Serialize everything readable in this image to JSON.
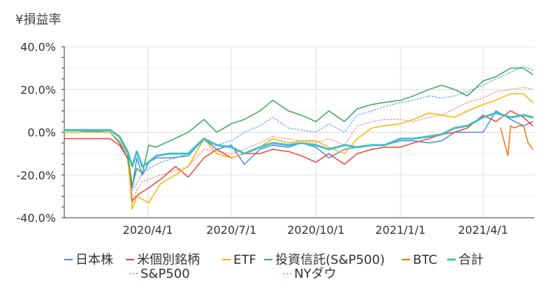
{
  "chart_data": {
    "type": "line",
    "title": "¥損益率",
    "ylim": [
      -0.4,
      0.4
    ],
    "xlim": [
      "2020-01-01",
      "2021-05-27"
    ],
    "grid": true,
    "yticks": [
      {
        "value": 0.4,
        "label": "40.0%"
      },
      {
        "value": 0.2,
        "label": "20.0%"
      },
      {
        "value": 0.0,
        "label": "0.0%"
      },
      {
        "value": -0.2,
        "label": "-20.0%"
      },
      {
        "value": -0.4,
        "label": "-40.0%"
      }
    ],
    "xticks": [
      {
        "value": "2020-04-01",
        "label": "2020/4/1"
      },
      {
        "value": "2020-07-01",
        "label": "2020/7/1"
      },
      {
        "value": "2020-10-01",
        "label": "2020/10/1"
      },
      {
        "value": "2021-01-01",
        "label": "2021/1/1"
      },
      {
        "value": "2021-04-01",
        "label": "2021/4/1"
      }
    ],
    "legend_position": "bottom",
    "series": [
      {
        "name": "日本株",
        "color": "#4a86e8",
        "style": "solid",
        "x": [
          "2020-01-01",
          "2020-02-20",
          "2020-03-01",
          "2020-03-10",
          "2020-03-15",
          "2020-03-20",
          "2020-03-26",
          "2020-04-02",
          "2020-04-10",
          "2020-04-25",
          "2020-05-15",
          "2020-06-01",
          "2020-06-15",
          "2020-07-01",
          "2020-07-15",
          "2020-08-01",
          "2020-08-15",
          "2020-09-01",
          "2020-09-15",
          "2020-10-01",
          "2020-10-15",
          "2020-11-01",
          "2020-11-15",
          "2020-12-01",
          "2020-12-15",
          "2021-01-01",
          "2021-01-15",
          "2021-02-01",
          "2021-02-15",
          "2021-03-01",
          "2021-03-15",
          "2021-04-01",
          "2021-04-15",
          "2021-05-01",
          "2021-05-15",
          "2021-05-25"
        ],
        "y": [
          0.01,
          0.0,
          -0.05,
          -0.12,
          -0.26,
          -0.12,
          -0.2,
          -0.14,
          -0.12,
          -0.12,
          -0.11,
          -0.03,
          -0.08,
          -0.06,
          -0.15,
          -0.08,
          -0.06,
          -0.07,
          -0.05,
          -0.07,
          -0.12,
          -0.08,
          -0.07,
          -0.06,
          -0.06,
          -0.04,
          -0.04,
          -0.05,
          -0.04,
          0.0,
          0.0,
          0.0,
          0.1,
          0.06,
          0.03,
          0.05
        ]
      },
      {
        "name": "米個別銘柄",
        "color": "#ea4335",
        "style": "solid",
        "x": [
          "2020-01-01",
          "2020-02-20",
          "2020-03-01",
          "2020-03-10",
          "2020-03-15",
          "2020-03-22",
          "2020-04-02",
          "2020-04-15",
          "2020-05-01",
          "2020-05-15",
          "2020-06-01",
          "2020-06-15",
          "2020-07-01",
          "2020-07-15",
          "2020-08-01",
          "2020-08-15",
          "2020-09-01",
          "2020-09-15",
          "2020-10-01",
          "2020-10-15",
          "2020-11-01",
          "2020-11-15",
          "2020-12-01",
          "2020-12-15",
          "2021-01-01",
          "2021-01-15",
          "2021-02-01",
          "2021-02-15",
          "2021-03-01",
          "2021-03-15",
          "2021-04-01",
          "2021-04-15",
          "2021-05-01",
          "2021-05-15",
          "2021-05-25"
        ],
        "y": [
          -0.03,
          -0.03,
          -0.06,
          -0.12,
          -0.32,
          -0.29,
          -0.26,
          -0.22,
          -0.16,
          -0.21,
          -0.12,
          -0.08,
          -0.12,
          -0.1,
          -0.1,
          -0.08,
          -0.09,
          -0.11,
          -0.14,
          -0.1,
          -0.15,
          -0.1,
          -0.08,
          -0.07,
          -0.07,
          -0.05,
          -0.03,
          -0.01,
          0.0,
          0.02,
          0.08,
          0.05,
          0.1,
          0.07,
          0.03
        ]
      },
      {
        "name": "ETF",
        "color": "#f4b400",
        "style": "solid",
        "x": [
          "2020-01-01",
          "2020-02-20",
          "2020-03-01",
          "2020-03-10",
          "2020-03-15",
          "2020-03-20",
          "2020-04-02",
          "2020-04-15",
          "2020-05-01",
          "2020-05-15",
          "2020-06-01",
          "2020-06-15",
          "2020-07-01",
          "2020-07-15",
          "2020-08-01",
          "2020-08-15",
          "2020-09-01",
          "2020-09-15",
          "2020-10-01",
          "2020-10-15",
          "2020-11-01",
          "2020-11-15",
          "2020-12-01",
          "2020-12-15",
          "2021-01-01",
          "2021-01-15",
          "2021-02-01",
          "2021-02-15",
          "2021-03-01",
          "2021-03-15",
          "2021-04-01",
          "2021-04-15",
          "2021-05-01",
          "2021-05-15",
          "2021-05-25"
        ],
        "y": [
          0.0,
          0.0,
          -0.04,
          -0.1,
          -0.36,
          -0.3,
          -0.33,
          -0.24,
          -0.2,
          -0.16,
          -0.03,
          -0.1,
          -0.12,
          -0.1,
          -0.07,
          -0.03,
          -0.05,
          -0.04,
          -0.04,
          -0.07,
          -0.1,
          -0.03,
          0.02,
          0.03,
          0.04,
          0.06,
          0.09,
          0.08,
          0.07,
          0.1,
          0.13,
          0.15,
          0.18,
          0.18,
          0.14
        ]
      },
      {
        "name": "投資信託(S&P500)",
        "color": "#34a853",
        "style": "solid",
        "x": [
          "2020-01-01",
          "2020-02-20",
          "2020-03-01",
          "2020-03-10",
          "2020-03-15",
          "2020-03-20",
          "2020-03-26",
          "2020-04-02",
          "2020-04-10",
          "2020-04-25",
          "2020-05-15",
          "2020-06-01",
          "2020-06-15",
          "2020-07-01",
          "2020-07-15",
          "2020-08-01",
          "2020-08-15",
          "2020-09-01",
          "2020-09-15",
          "2020-10-01",
          "2020-10-15",
          "2020-11-01",
          "2020-11-15",
          "2020-12-01",
          "2020-12-15",
          "2021-01-01",
          "2021-01-15",
          "2021-02-01",
          "2021-02-15",
          "2021-03-01",
          "2021-03-15",
          "2021-04-01",
          "2021-04-15",
          "2021-05-01",
          "2021-05-15",
          "2021-05-25"
        ],
        "y": [
          0.01,
          0.01,
          -0.02,
          -0.1,
          -0.25,
          -0.17,
          -0.19,
          -0.06,
          -0.07,
          -0.04,
          0.0,
          0.06,
          0.0,
          0.04,
          0.06,
          0.1,
          0.15,
          0.1,
          0.08,
          0.05,
          0.1,
          0.05,
          0.11,
          0.13,
          0.14,
          0.15,
          0.17,
          0.2,
          0.22,
          0.2,
          0.17,
          0.24,
          0.26,
          0.3,
          0.3,
          0.27
        ]
      },
      {
        "name": "BTC",
        "color": "#ff6d01",
        "style": "solid",
        "x": [
          "2021-04-20",
          "2021-04-28",
          "2021-05-01",
          "2021-05-05",
          "2021-05-10",
          "2021-05-15",
          "2021-05-20",
          "2021-05-25"
        ],
        "y": [
          0.02,
          -0.11,
          0.03,
          0.02,
          0.03,
          0.03,
          -0.05,
          -0.08
        ]
      },
      {
        "name": "合計",
        "color": "#46bdc6",
        "style": "thick",
        "x": [
          "2020-01-01",
          "2020-02-20",
          "2020-03-01",
          "2020-03-10",
          "2020-03-15",
          "2020-03-20",
          "2020-03-26",
          "2020-04-02",
          "2020-04-10",
          "2020-04-25",
          "2020-05-15",
          "2020-06-01",
          "2020-06-15",
          "2020-07-01",
          "2020-07-15",
          "2020-08-01",
          "2020-08-15",
          "2020-09-01",
          "2020-09-15",
          "2020-10-01",
          "2020-10-15",
          "2020-11-01",
          "2020-11-15",
          "2020-12-01",
          "2020-12-15",
          "2021-01-01",
          "2021-01-15",
          "2021-02-01",
          "2021-02-15",
          "2021-03-01",
          "2021-03-15",
          "2021-04-01",
          "2021-04-15",
          "2021-05-01",
          "2021-05-15",
          "2021-05-25"
        ],
        "y": [
          0.01,
          0.01,
          -0.02,
          -0.09,
          -0.16,
          -0.09,
          -0.16,
          -0.14,
          -0.11,
          -0.1,
          -0.1,
          -0.03,
          -0.06,
          -0.07,
          -0.1,
          -0.07,
          -0.05,
          -0.06,
          -0.05,
          -0.06,
          -0.08,
          -0.06,
          -0.07,
          -0.06,
          -0.06,
          -0.03,
          -0.03,
          -0.02,
          -0.01,
          0.02,
          0.03,
          0.07,
          0.09,
          0.07,
          0.08,
          0.07
        ]
      },
      {
        "name": "S&P500",
        "color": "#7baaf7",
        "style": "dotted",
        "x": [
          "2020-01-01",
          "2020-02-20",
          "2020-03-01",
          "2020-03-10",
          "2020-03-15",
          "2020-03-20",
          "2020-03-26",
          "2020-04-02",
          "2020-04-15",
          "2020-05-01",
          "2020-05-15",
          "2020-06-01",
          "2020-06-15",
          "2020-07-01",
          "2020-07-15",
          "2020-08-01",
          "2020-08-15",
          "2020-09-01",
          "2020-09-15",
          "2020-10-01",
          "2020-10-15",
          "2020-11-01",
          "2020-11-15",
          "2020-12-01",
          "2020-12-15",
          "2021-01-01",
          "2021-01-15",
          "2021-02-01",
          "2021-02-15",
          "2021-03-01",
          "2021-03-15",
          "2021-04-01",
          "2021-04-15",
          "2021-05-01",
          "2021-05-15",
          "2021-05-25"
        ],
        "y": [
          0.0,
          0.0,
          -0.04,
          -0.12,
          -0.27,
          -0.24,
          -0.19,
          -0.17,
          -0.14,
          -0.12,
          -0.1,
          -0.04,
          -0.06,
          -0.04,
          0.0,
          0.03,
          0.07,
          0.02,
          0.01,
          0.0,
          0.04,
          0.0,
          0.08,
          0.1,
          0.12,
          0.14,
          0.15,
          0.17,
          0.16,
          0.17,
          0.19,
          0.22,
          0.25,
          0.28,
          0.31,
          0.29
        ]
      },
      {
        "name": "NYダウ",
        "color": "#ef9a9a",
        "style": "dotted",
        "x": [
          "2020-01-01",
          "2020-02-20",
          "2020-03-01",
          "2020-03-10",
          "2020-03-15",
          "2020-03-20",
          "2020-03-26",
          "2020-04-02",
          "2020-04-15",
          "2020-05-01",
          "2020-05-15",
          "2020-06-01",
          "2020-06-15",
          "2020-07-01",
          "2020-07-15",
          "2020-08-01",
          "2020-08-15",
          "2020-09-01",
          "2020-09-15",
          "2020-10-01",
          "2020-10-15",
          "2020-11-01",
          "2020-11-15",
          "2020-12-01",
          "2020-12-15",
          "2021-01-01",
          "2021-01-15",
          "2021-02-01",
          "2021-02-15",
          "2021-03-01",
          "2021-03-15",
          "2021-04-01",
          "2021-04-15",
          "2021-05-01",
          "2021-05-15",
          "2021-05-25"
        ],
        "y": [
          0.0,
          0.0,
          -0.05,
          -0.13,
          -0.33,
          -0.27,
          -0.23,
          -0.22,
          -0.2,
          -0.18,
          -0.16,
          -0.08,
          -0.09,
          -0.1,
          -0.08,
          -0.05,
          -0.02,
          -0.03,
          -0.04,
          -0.05,
          -0.03,
          -0.06,
          0.03,
          0.05,
          0.06,
          0.06,
          0.05,
          0.07,
          0.08,
          0.11,
          0.14,
          0.16,
          0.19,
          0.2,
          0.21,
          0.2
        ]
      }
    ]
  }
}
